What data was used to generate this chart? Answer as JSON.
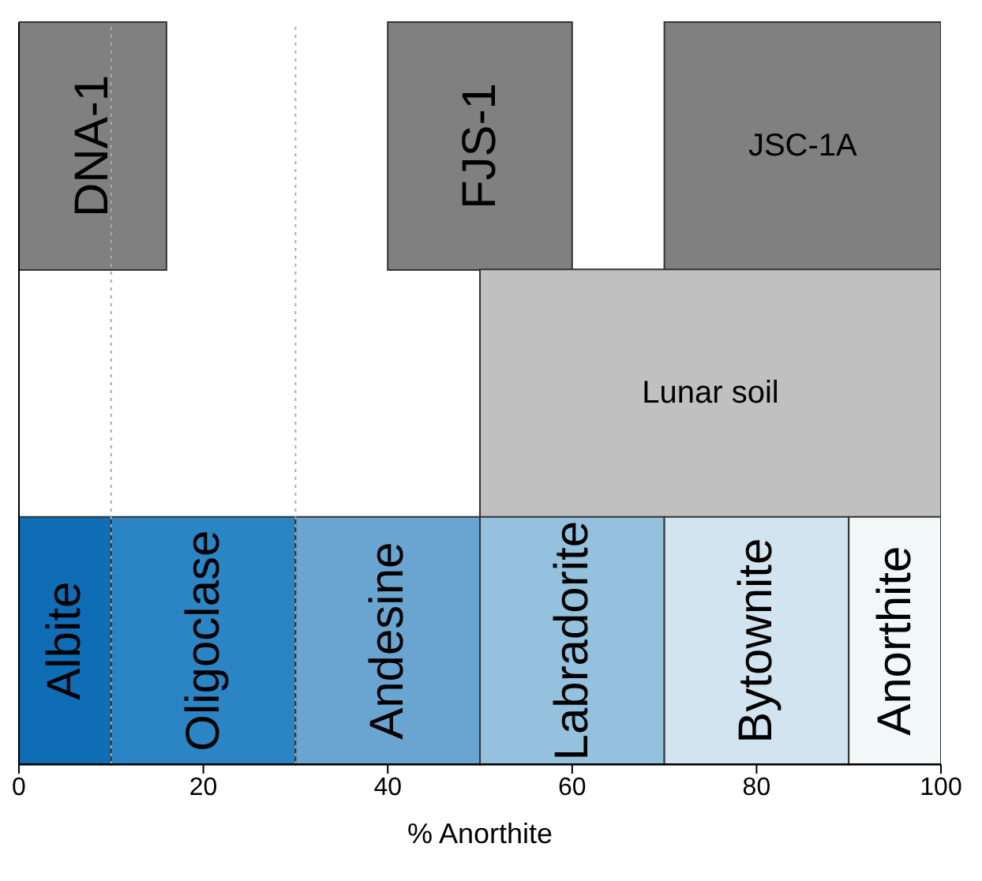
{
  "chart_data": {
    "type": "bar",
    "orientation": "horizontal",
    "xlabel": "% Anorthite",
    "categories": [
      null,
      null,
      null
    ],
    "series": [
      {
        "name": "DNA-1",
        "color": "#808080",
        "values": [
          16,
          null,
          null
        ],
        "base": [
          0,
          null,
          null
        ]
      },
      {
        "name": "FJS-1",
        "color": "#808080",
        "values": [
          20,
          null,
          null
        ],
        "base": [
          40,
          null,
          null
        ]
      },
      {
        "name": "JSC-1A",
        "color": "#808080",
        "values": [
          30,
          null,
          null
        ],
        "base": [
          70,
          null,
          null
        ]
      },
      {
        "name": "Lunar soil",
        "color": "#c0c0c0",
        "values": [
          null,
          50,
          null
        ],
        "base": [
          null,
          50,
          null
        ]
      },
      {
        "name": "Albite",
        "color": "#0e6db5",
        "values": [
          null,
          null,
          10
        ],
        "base": [
          null,
          null,
          0
        ]
      },
      {
        "name": "Oligoclase",
        "color": "#2b84c4",
        "values": [
          null,
          null,
          20
        ],
        "base": [
          null,
          null,
          10
        ]
      },
      {
        "name": "Andesine",
        "color": "#6aa5d1",
        "values": [
          null,
          null,
          20
        ],
        "base": [
          null,
          null,
          30
        ]
      },
      {
        "name": "Labradorite",
        "color": "#93c1de",
        "values": [
          null,
          null,
          20
        ],
        "base": [
          null,
          null,
          50
        ]
      },
      {
        "name": "Bytownite",
        "color": "#d1e4ef",
        "values": [
          null,
          null,
          20
        ],
        "base": [
          null,
          null,
          70
        ]
      },
      {
        "name": "Anorthite",
        "color": "#f2f7f7",
        "values": [
          null,
          null,
          10
        ],
        "base": [
          null,
          null,
          90
        ]
      }
    ],
    "xlim": [
      0,
      100
    ],
    "xticks": [
      0,
      20,
      40,
      60,
      80,
      100
    ],
    "tick_labels": "x",
    "ref_lines": [
      {
        "axis": "x",
        "value": 10,
        "line_style": "dotted"
      },
      {
        "axis": "x",
        "value": 30,
        "line_style": "dotted"
      }
    ]
  }
}
